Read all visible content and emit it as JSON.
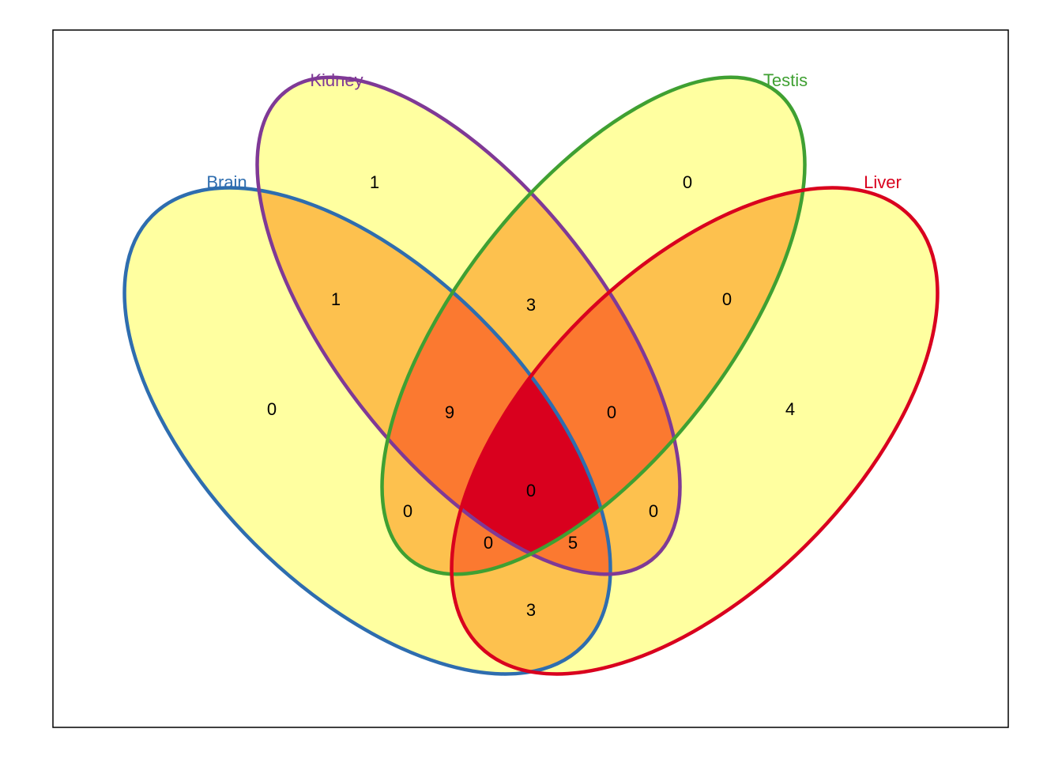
{
  "colors": {
    "background": "#ffffff",
    "frame": "#000000",
    "level1": "#FFFFA0",
    "level2": "#FDC14E",
    "level3": "#FB7930",
    "level4": "#D9001E",
    "brain": "#2E6DAF",
    "kidney": "#7F3996",
    "testis": "#3FA032",
    "liver": "#D9001E"
  },
  "sets": {
    "brain": "Brain",
    "kidney": "Kidney",
    "testis": "Testis",
    "liver": "Liver"
  },
  "regions": {
    "brain_only": "0",
    "kidney_only": "1",
    "testis_only": "0",
    "liver_only": "4",
    "brain_kidney": "1",
    "kidney_testis": "3",
    "testis_liver": "0",
    "brain_testis": "0",
    "kidney_liver": "0",
    "brain_liver": "3",
    "brain_kidney_testis": "9",
    "kidney_testis_liver": "0",
    "brain_kidney_liver": "5",
    "brain_testis_liver": "0",
    "all_four": "0"
  }
}
